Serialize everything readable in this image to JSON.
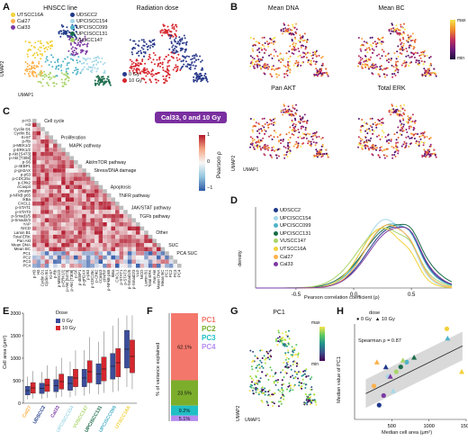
{
  "panels": {
    "A": {
      "label": "A",
      "title_left": "HNSCC line",
      "title_right": "Radiation dose",
      "xlabel": "UMAP1",
      "ylabel": "UMAP2",
      "legend": [
        {
          "name": "UTSCC16A",
          "color": "#f2d13a"
        },
        {
          "name": "Cal27",
          "color": "#ffb14a"
        },
        {
          "name": "Cal33",
          "color": "#7d3aa3"
        },
        {
          "name": "UDSCC2",
          "color": "#1f3a8a"
        },
        {
          "name": "UPCISCC154",
          "color": "#a5d8e8"
        },
        {
          "name": "UPCISCC099",
          "color": "#4fb3c9"
        },
        {
          "name": "UPCISCC131",
          "color": "#1a6b4a"
        },
        {
          "name": "VUSCC147",
          "color": "#a9d46a"
        }
      ],
      "dose_legend": [
        {
          "name": "0 Gy",
          "color": "#2b3b8c"
        },
        {
          "name": "10 Gy",
          "color": "#d7262e"
        }
      ]
    },
    "B": {
      "label": "B",
      "titles": [
        "Mean DNA",
        "Mean BC",
        "Pan AKT",
        "Total ERK"
      ],
      "colorbar": {
        "max": "max",
        "min": "min"
      },
      "xlabel": "UMAP1",
      "ylabel": "UMAP2"
    },
    "C": {
      "label": "C",
      "badge": "Cal33, 0 and 10 Gy",
      "colorbar_label": "Pearson ρ",
      "colorbar_ticks": [
        "1",
        "0",
        "−1"
      ],
      "rows": [
        "p-H3",
        "H3",
        "Cyclin D1",
        "Cyclin B1",
        "Ki-67",
        "p-Rb",
        "p-MEK1/2",
        "p-ERK1/2",
        "p-Akt [S473]",
        "p-Akt [T308]",
        "p-S6",
        "p-4EBP1",
        "p-gH2AX",
        "p-p53",
        "p-CDC25c",
        "p-Chk2",
        "cCasp3",
        "cPARP",
        "p-NFkB p65",
        "IkBa",
        "CXCL1",
        "p-STAT1",
        "p-STAT3",
        "p-Smad1/5",
        "p-Smad2/3",
        "YAP",
        "NICD",
        "Lamin B1",
        "Total ERK",
        "Pan Akt",
        "Mean DNA",
        "Mean BC",
        "PC1",
        "PC2",
        "PC3",
        "PC4"
      ],
      "pathways": [
        "Cell cycle",
        "Proliferation",
        "MAPK pathway",
        "Akt/mTOR pathway",
        "Stress/DNA damage",
        "Apoptosis",
        "TNFR pathway",
        "JAK/STAT pathway",
        "TGFb pathway",
        "Other",
        "SUC",
        "PCA SUC"
      ]
    },
    "D": {
      "label": "D",
      "xlabel": "Pearson correlation coefficient (ρ)",
      "ylabel": "density",
      "xticks": [
        "-0.5",
        "0.0",
        "0.5"
      ],
      "legend": [
        {
          "name": "UDSCC2",
          "color": "#1f3a8a"
        },
        {
          "name": "UPCISCC154",
          "color": "#a5d8e8"
        },
        {
          "name": "UPCISCC099",
          "color": "#4fb3c9"
        },
        {
          "name": "UPCISCC131",
          "color": "#1a6b4a"
        },
        {
          "name": "VUSCC147",
          "color": "#a9d46a"
        },
        {
          "name": "UTSCC16A",
          "color": "#f2d13a"
        },
        {
          "name": "Cal27",
          "color": "#ffb14a"
        },
        {
          "name": "Cal33",
          "color": "#7d3aa3"
        }
      ]
    },
    "E": {
      "label": "E",
      "ylabel": "Cell area (μm²)",
      "yticks": [
        "0",
        "500",
        "1000",
        "1500",
        "2000"
      ],
      "dose_title": "Dose",
      "dose_legend": [
        {
          "name": "0 Gy",
          "color": "#3b4d9b"
        },
        {
          "name": "10 Gy",
          "color": "#d7262e"
        }
      ],
      "lines": [
        {
          "name": "Cal27",
          "color": "#ffb14a"
        },
        {
          "name": "UDSCC2",
          "color": "#1f3a8a"
        },
        {
          "name": "Cal33",
          "color": "#7d3aa3"
        },
        {
          "name": "UPCISCC154",
          "color": "#a5d8e8"
        },
        {
          "name": "VUSCC147",
          "color": "#a9d46a"
        },
        {
          "name": "UPCISCC131",
          "color": "#1a6b4a"
        },
        {
          "name": "UPCISCC099",
          "color": "#4fb3c9"
        },
        {
          "name": "UTSCC16A",
          "color": "#f2d13a"
        }
      ]
    },
    "F": {
      "label": "F",
      "ylabel": "% of variance explained",
      "segments": [
        {
          "name": "PC1",
          "value": "62.1%",
          "color": "#f4776b"
        },
        {
          "name": "PC2",
          "value": "23.5%",
          "color": "#7cae2c"
        },
        {
          "name": "PC3",
          "value": "9.2%",
          "color": "#1fbfc4"
        },
        {
          "name": "PC4",
          "value": "5.1%",
          "color": "#b58cf0"
        }
      ]
    },
    "G": {
      "label": "G",
      "title": "PC1",
      "colorbar": {
        "max": "max",
        "min": "min"
      },
      "xlabel": "UMAP1",
      "ylabel": "UMAP2"
    },
    "H": {
      "label": "H",
      "dose_title": "dose",
      "dose_legend": [
        {
          "name": "0 Gy",
          "shape": "circle"
        },
        {
          "name": "10 Gy",
          "shape": "triangle"
        }
      ],
      "annotation": "Spearman ρ = 0.87",
      "xlabel": "Median cell area (μm²)",
      "ylabel": "Median value of PC1",
      "xticks": [
        "500",
        "1000",
        "1500"
      ]
    }
  },
  "chart_data": [
    {
      "type": "bar",
      "panel": "F",
      "categories": [
        "PC1",
        "PC2",
        "PC3",
        "PC4"
      ],
      "values": [
        62.1,
        23.5,
        9.2,
        5.1
      ],
      "ylabel": "% of variance explained",
      "stacked": true
    },
    {
      "type": "scatter",
      "panel": "H",
      "xlabel": "Median cell area (μm²)",
      "ylabel": "Median value of PC1",
      "xlim": [
        0,
        1500
      ],
      "series": [
        {
          "name": "0 Gy",
          "x": [
            260,
            330,
            390,
            450,
            560,
            620,
            700,
            1240
          ],
          "y": [
            0.35,
            0.15,
            0.25,
            0.45,
            0.5,
            0.55,
            0.6,
            0.95
          ]
        },
        {
          "name": "10 Gy",
          "x": [
            300,
            420,
            480,
            520,
            650,
            800,
            1250,
            1440
          ],
          "y": [
            0.6,
            0.55,
            0.45,
            0.3,
            0.62,
            0.65,
            0.85,
            0.5
          ]
        }
      ]
    },
    {
      "type": "box",
      "panel": "E",
      "ylabel": "Cell area (μm²)",
      "ylim": [
        0,
        2000
      ],
      "categories": [
        "Cal27",
        "UDSCC2",
        "Cal33",
        "UPCISCC154",
        "VUSCC147",
        "UPCISCC131",
        "UPCISCC099",
        "UTSCC16A"
      ],
      "series": [
        {
          "name": "0 Gy",
          "medians": [
            280,
            330,
            390,
            440,
            560,
            650,
            820,
            1200
          ]
        },
        {
          "name": "10 Gy",
          "medians": [
            340,
            400,
            480,
            560,
            700,
            760,
            900,
            1040
          ]
        }
      ]
    }
  ]
}
